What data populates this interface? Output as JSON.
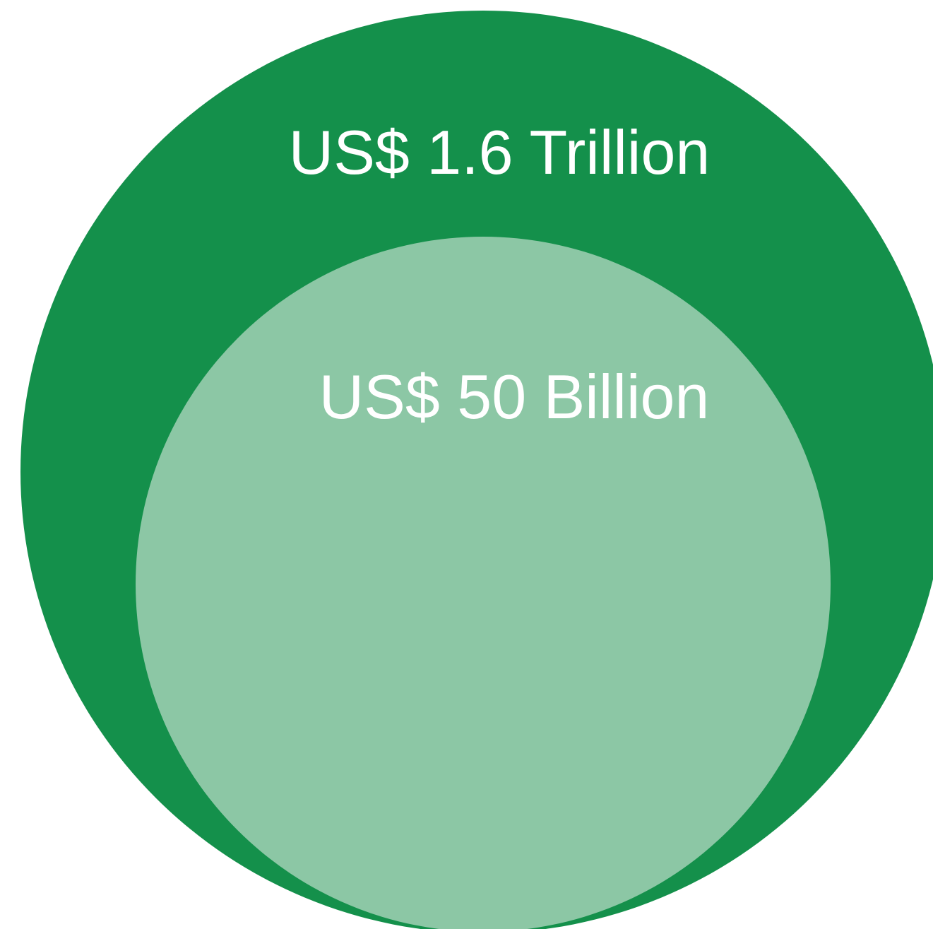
{
  "diagram": {
    "outer": {
      "label": "US$ 1.6 Trillion",
      "color": "#14904b"
    },
    "inner": {
      "label": "US$ 50 Billion",
      "color": "#8cc7a5"
    },
    "text_color": "#ffffff",
    "background": "#ffffff"
  }
}
